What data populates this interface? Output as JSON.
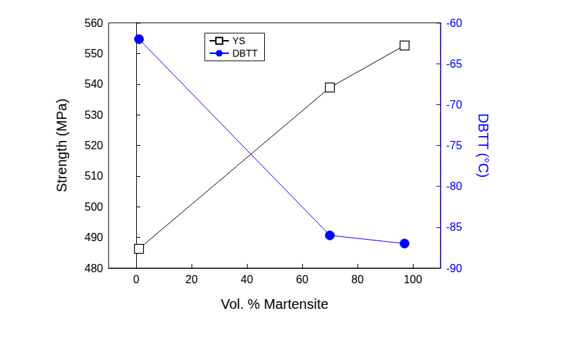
{
  "chart_data": {
    "type": "line",
    "x_label": "Vol. % Martensite",
    "y_label": "Strength (MPa)",
    "y2_label": "DBTT (°C)",
    "x": [
      1,
      70,
      97
    ],
    "xlim": [
      -10,
      110
    ],
    "xticks": [
      0,
      20,
      40,
      60,
      80,
      100
    ],
    "ylim": [
      480,
      560
    ],
    "yticks": [
      480,
      490,
      500,
      510,
      520,
      530,
      540,
      550,
      560
    ],
    "y2lim": [
      -90,
      -60
    ],
    "y2ticks": [
      -90,
      -85,
      -80,
      -75,
      -70,
      -65,
      -60
    ],
    "legend": "upper center",
    "grid": false,
    "series": [
      {
        "name": "YS",
        "color": "#000000",
        "marker": "open_square",
        "line_style": "solid",
        "values": [
          486.3,
          538.9,
          552.6
        ]
      },
      {
        "name": "DBTT",
        "color": "#0000ff",
        "marker": "circle",
        "line_style": "solid",
        "axis": "y2",
        "values": [
          -62,
          -86,
          -87
        ]
      }
    ]
  }
}
